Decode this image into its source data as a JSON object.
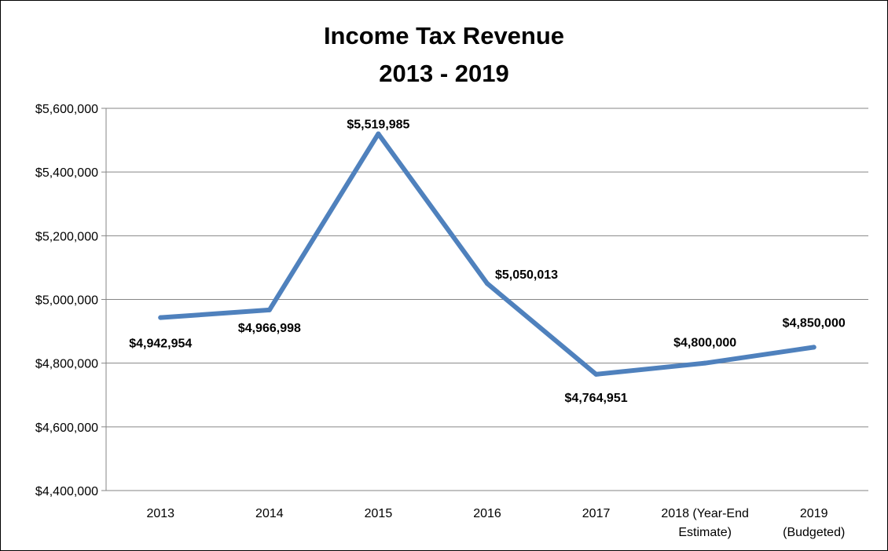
{
  "chart_data": {
    "type": "line",
    "title_line1": "Income Tax Revenue",
    "title_line2": "2013 - 2019",
    "xlabel": "",
    "ylabel": "",
    "ylim": [
      4400000,
      5600000
    ],
    "y_ticks": [
      {
        "value": 5600000,
        "label": "$5,600,000"
      },
      {
        "value": 5400000,
        "label": "$5,400,000"
      },
      {
        "value": 5200000,
        "label": "$5,200,000"
      },
      {
        "value": 5000000,
        "label": "$5,000,000"
      },
      {
        "value": 4800000,
        "label": "$4,800,000"
      },
      {
        "value": 4600000,
        "label": "$4,600,000"
      },
      {
        "value": 4400000,
        "label": "$4,400,000"
      }
    ],
    "categories": [
      [
        "2013"
      ],
      [
        "2014"
      ],
      [
        "2015"
      ],
      [
        "2016"
      ],
      [
        "2017"
      ],
      [
        "2018 (Year-End",
        "Estimate)"
      ],
      [
        "2019",
        "(Budgeted)"
      ]
    ],
    "series": [
      {
        "values": [
          4942954,
          4966998,
          5519985,
          5050013,
          4764951,
          4800000,
          4850000
        ],
        "labels": [
          "$4,942,954",
          "$4,966,998",
          "$5,519,985",
          "$5,050,013",
          "$4,764,951",
          "$4,800,000",
          "$4,850,000"
        ],
        "color": "#4F81BD"
      }
    ],
    "grid": true,
    "legend": "none"
  }
}
